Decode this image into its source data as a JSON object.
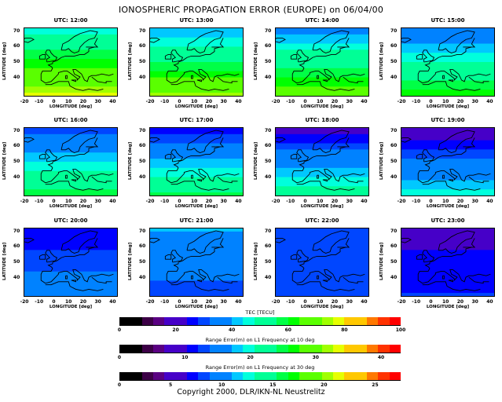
{
  "title": "IONOSPHERIC PROPAGATION ERROR (EUROPE) on 06/04/00",
  "copyright": "Copyright 2000, DLR/IKN-NL Neustrelitz",
  "chart_data": {
    "type": "heatmap",
    "title": "IONOSPHERIC PROPAGATION ERROR (EUROPE) on 06/04/00",
    "xlabel": "LONGITUDE [deg]",
    "ylabel": "LATITUDE [deg]",
    "xlim": [
      -20,
      43
    ],
    "ylim": [
      28,
      72
    ],
    "xticks": [
      "-20",
      "-10",
      "0",
      "10",
      "20",
      "30",
      "40"
    ],
    "yticks": [
      "70",
      "60",
      "50",
      "40"
    ],
    "grid": false,
    "panels": [
      {
        "title": "UTC: 12:00",
        "tec_north": 46,
        "tec_south": 76
      },
      {
        "title": "UTC: 13:00",
        "tec_north": 40,
        "tec_south": 72
      },
      {
        "title": "UTC: 14:00",
        "tec_north": 38,
        "tec_south": 68
      },
      {
        "title": "UTC: 15:00",
        "tec_north": 34,
        "tec_south": 62
      },
      {
        "title": "UTC: 16:00",
        "tec_north": 30,
        "tec_south": 58
      },
      {
        "title": "UTC: 17:00",
        "tec_north": 26,
        "tec_south": 56
      },
      {
        "title": "UTC: 18:00",
        "tec_north": 22,
        "tec_south": 52
      },
      {
        "title": "UTC: 19:00",
        "tec_north": 20,
        "tec_south": 46
      },
      {
        "title": "UTC: 20:00",
        "tec_north": 24,
        "tec_south": 36
      },
      {
        "title": "UTC: 21:00",
        "tec_north": 40,
        "tec_south": 30
      },
      {
        "title": "UTC: 22:00",
        "tec_north": 30,
        "tec_south": 28
      },
      {
        "title": "UTC: 23:00",
        "tec_north": 22,
        "tec_south": 28
      }
    ],
    "colorbars": [
      {
        "title": "TEC [TECU]",
        "ticks": [
          "0",
          "20",
          "40",
          "60",
          "80",
          "100"
        ],
        "range": [
          0,
          100
        ]
      },
      {
        "title": "Range Error(m) on L1 Frequency at 10 deg",
        "ticks": [
          "0",
          "10",
          "20",
          "30",
          "40"
        ],
        "range": [
          0,
          43
        ]
      },
      {
        "title": "Range Error(m) on L1 Frequency at 30 deg",
        "ticks": [
          "0",
          "5",
          "10",
          "15",
          "20",
          "25"
        ],
        "range": [
          0,
          27.5
        ]
      }
    ],
    "colormap": [
      "#000000",
      "#000000",
      "#3c0046",
      "#5a0082",
      "#4600c8",
      "#4600c8",
      "#0000ff",
      "#0046ff",
      "#0082ff",
      "#0082ff",
      "#00c8ff",
      "#00ffdc",
      "#00ff96",
      "#00ff96",
      "#00ff46",
      "#00ff00",
      "#5aff00",
      "#5aff00",
      "#a0ff00",
      "#e6ff00",
      "#ffc800",
      "#ffc800",
      "#ff7800",
      "#ff3200",
      "#ff0000"
    ]
  }
}
